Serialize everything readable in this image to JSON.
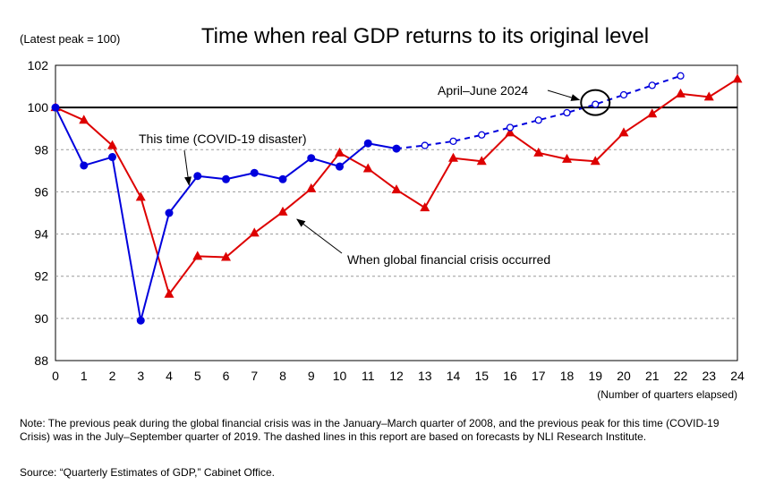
{
  "chart_data": {
    "type": "line",
    "title": "Time when real GDP returns to its original level",
    "ylabel": "(Latest peak = 100)",
    "xlabel": "(Number of quarters elapsed)",
    "x": [
      0,
      1,
      2,
      3,
      4,
      5,
      6,
      7,
      8,
      9,
      10,
      11,
      12,
      13,
      14,
      15,
      16,
      17,
      18,
      19,
      20,
      21,
      22,
      23,
      24
    ],
    "xlim": [
      0,
      24
    ],
    "ylim": [
      88,
      102
    ],
    "yticks": [
      88,
      90,
      92,
      94,
      96,
      98,
      100,
      102
    ],
    "reference_line": 100,
    "grid": "horizontal dashed",
    "series": [
      {
        "name": "This time (COVID-19 disaster)",
        "color": "#0000dd",
        "marker": "circle",
        "actual": {
          "x": [
            0,
            1,
            2,
            3,
            4,
            5,
            6,
            7,
            8,
            9,
            10,
            11,
            12
          ],
          "values": [
            100.0,
            97.25,
            97.65,
            89.9,
            95.0,
            96.75,
            96.6,
            96.9,
            96.6,
            97.6,
            97.2,
            98.3,
            98.05
          ]
        },
        "forecast": {
          "x": [
            13,
            14,
            15,
            16,
            17,
            18,
            19,
            20,
            21,
            22
          ],
          "values": [
            98.2,
            98.4,
            98.7,
            99.05,
            99.4,
            99.75,
            100.15,
            100.6,
            101.05,
            101.5
          ]
        }
      },
      {
        "name": "When global financial crisis occurred",
        "color": "#dd0000",
        "marker": "triangle",
        "actual": {
          "x": [
            0,
            1,
            2,
            3,
            4,
            5,
            6,
            7,
            8,
            9,
            10,
            11,
            12,
            13,
            14,
            15,
            16,
            17,
            18,
            19,
            20,
            21,
            22,
            23,
            24
          ],
          "values": [
            100.0,
            99.4,
            98.2,
            95.75,
            91.15,
            92.95,
            92.9,
            94.05,
            95.05,
            96.15,
            97.85,
            97.1,
            96.1,
            95.25,
            97.6,
            97.45,
            98.8,
            97.85,
            97.55,
            97.45,
            98.8,
            99.7,
            100.65,
            100.5,
            101.35
          ]
        }
      }
    ],
    "annotations": [
      {
        "text": "April–June 2024",
        "x": 19,
        "y": 100.15
      },
      {
        "text": "This time (COVID-19 disaster)"
      },
      {
        "text": "When global financial crisis occurred"
      }
    ]
  },
  "note": "Note: The previous peak during the global financial crisis was in the January–March quarter of 2008, and the previous peak for this time (COVID-19 Crisis) was in the July–September quarter of 2019. The dashed lines in this report are based on forecasts by NLI Research Institute.",
  "source": "Source: “Quarterly Estimates of GDP,” Cabinet Office."
}
